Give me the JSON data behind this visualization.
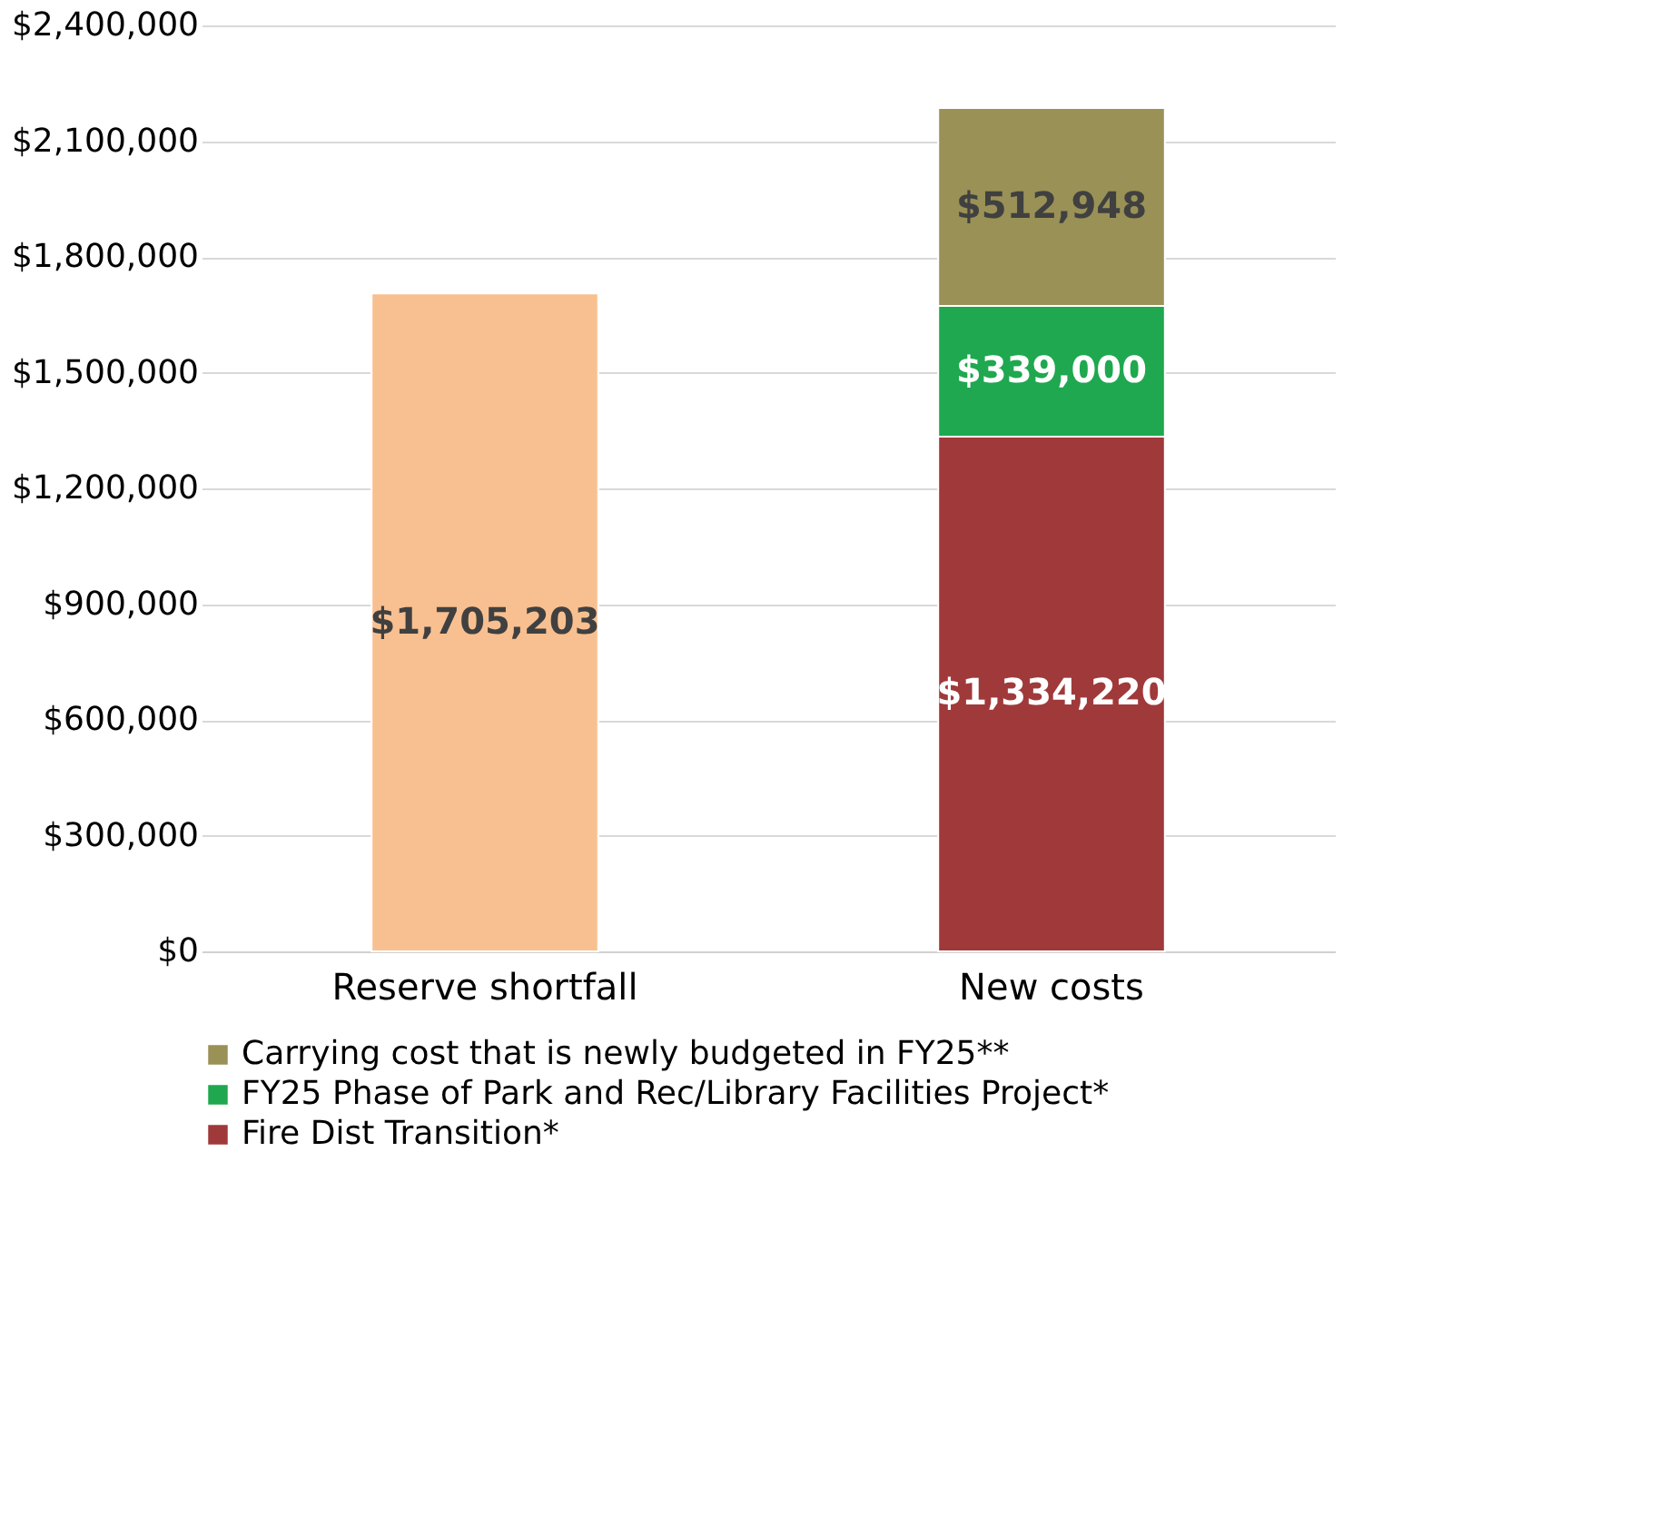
{
  "chart_data": {
    "type": "bar",
    "stacked": true,
    "categories": [
      "Reserve shortfall",
      "New costs"
    ],
    "series": [
      {
        "color": "#f8c090",
        "values": [
          1705203,
          null
        ],
        "value_labels": [
          "$1,705,203",
          null
        ]
      },
      {
        "name": "Fire Dist Transition*",
        "color": "#a0393a",
        "values": [
          null,
          1334220
        ],
        "value_labels": [
          null,
          "$1,334,220"
        ]
      },
      {
        "name": "FY25 Phase of Park and Rec/Library Facilities Project*",
        "color": "#1fa84f",
        "values": [
          null,
          339000
        ],
        "value_labels": [
          null,
          "$339,000"
        ]
      },
      {
        "name": "Carrying cost that is newly budgeted in FY25**",
        "color": "#9a9157",
        "values": [
          null,
          512948
        ],
        "value_labels": [
          null,
          "$512,948"
        ]
      }
    ],
    "ylim": [
      0,
      2400000
    ],
    "yticks": [
      {
        "value": 0,
        "label": "$0"
      },
      {
        "value": 300000,
        "label": "$300,000"
      },
      {
        "value": 600000,
        "label": "$600,000"
      },
      {
        "value": 900000,
        "label": "$900,000"
      },
      {
        "value": 1200000,
        "label": "$1,200,000"
      },
      {
        "value": 1500000,
        "label": "$1,500,000"
      },
      {
        "value": 1800000,
        "label": "$1,800,000"
      },
      {
        "value": 2100000,
        "label": "$2,100,000"
      },
      {
        "value": 2400000,
        "label": "$2,400,000"
      }
    ],
    "grid": "y",
    "legend": "bottom"
  }
}
